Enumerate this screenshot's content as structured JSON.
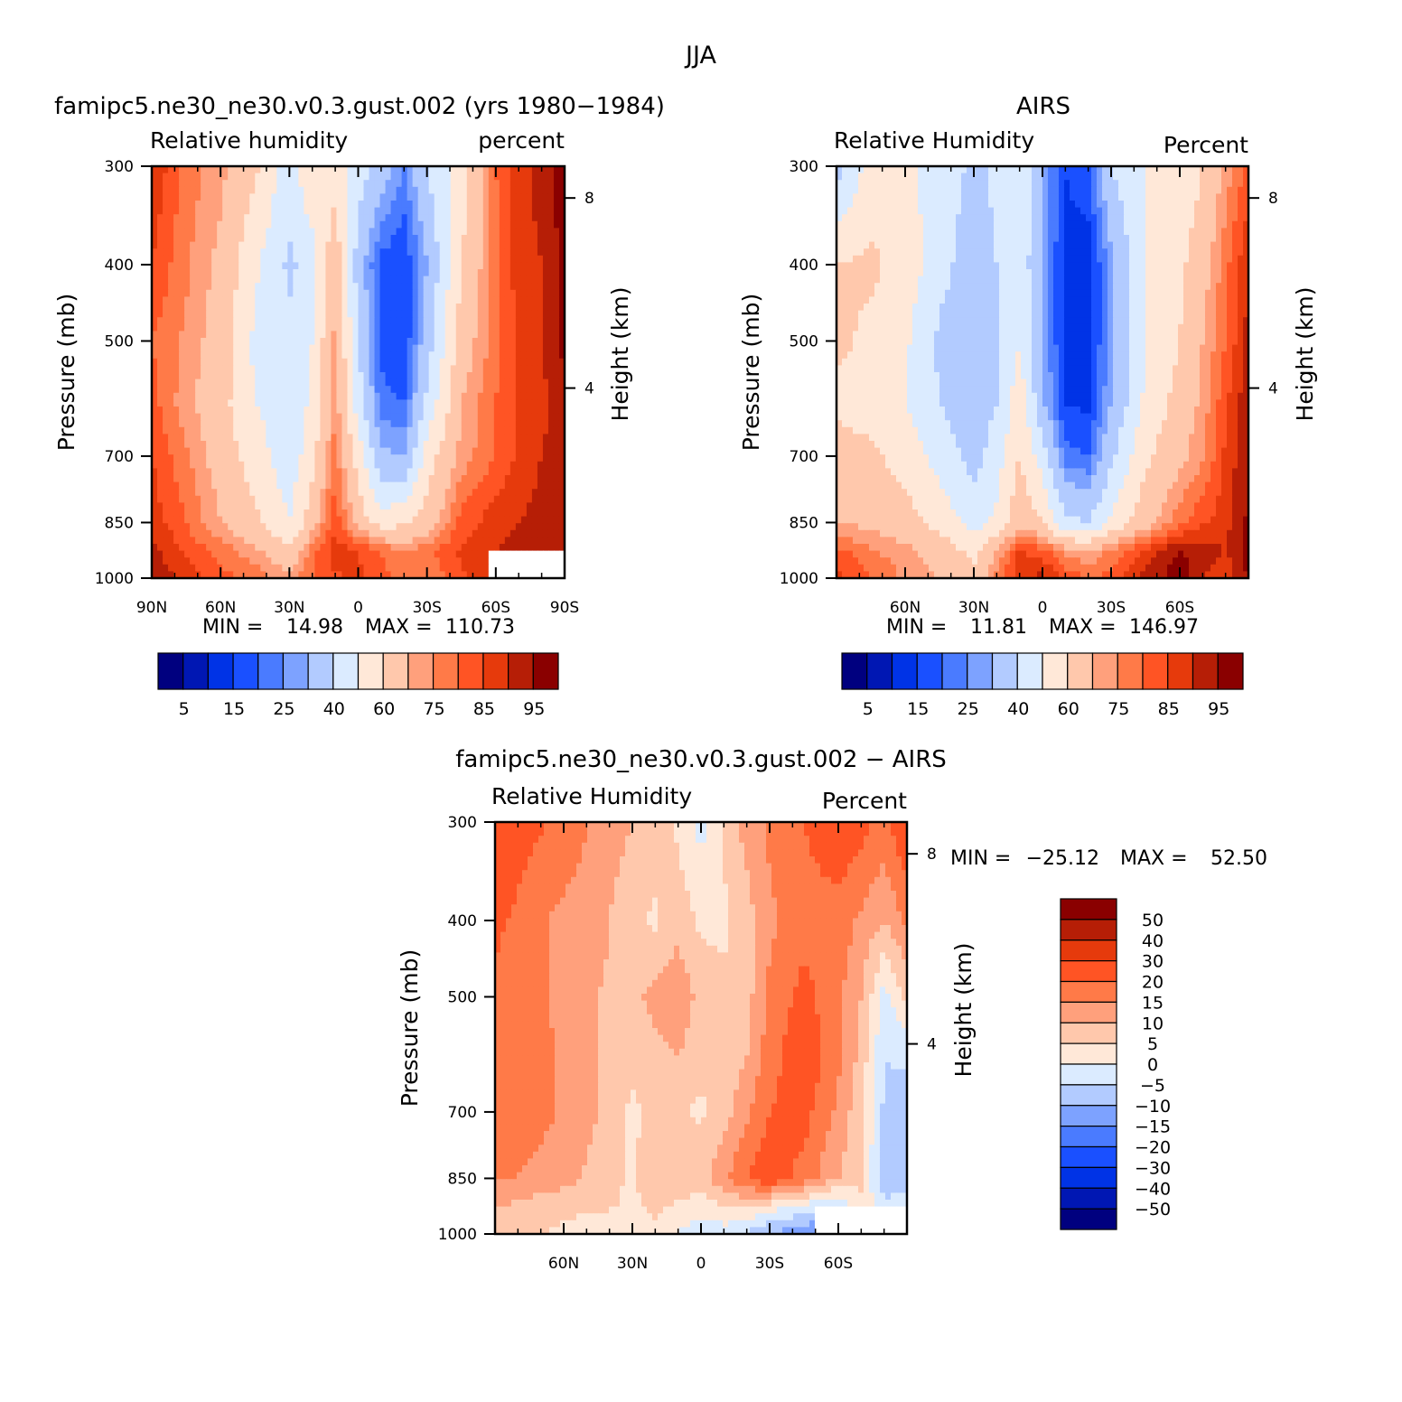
{
  "figure": {
    "title": "JJA"
  },
  "colors": {
    "abs_palette": [
      "#00007f",
      "#0017b3",
      "#0033e6",
      "#1a50ff",
      "#4a7bff",
      "#7da2ff",
      "#b2cbff",
      "#dbebff",
      "#ffe8d8",
      "#ffc8ac",
      "#ffa07c",
      "#ff7a48",
      "#ff5424",
      "#e63a0c",
      "#b61e06",
      "#8a0000"
    ],
    "diff_palette": [
      "#00007f",
      "#0017b3",
      "#0033e6",
      "#1a50ff",
      "#4a7bff",
      "#7da2ff",
      "#b2cbff",
      "#dbebff",
      "#ffe8d8",
      "#ffc8ac",
      "#ffa07c",
      "#ff7a48",
      "#ff5424",
      "#e63a0c",
      "#b61e06",
      "#8a0000"
    ]
  },
  "chart_data": [
    {
      "type": "heatmap",
      "title": "famipc5.ne30_ne30.v0.3.gust.002 (yrs 1980−1984)",
      "left_string": "Relative  humidity",
      "right_string": "percent",
      "xlabel": "",
      "ylabel": "Pressure  (mb)",
      "y2label": "Height  (km)",
      "x_range": [
        90,
        -90
      ],
      "x_ticks": [
        {
          "v": 90,
          "label": "90N"
        },
        {
          "v": 60,
          "label": "60N"
        },
        {
          "v": 30,
          "label": "30N"
        },
        {
          "v": 0,
          "label": "0"
        },
        {
          "v": -30,
          "label": "30S"
        },
        {
          "v": -60,
          "label": "60S"
        },
        {
          "v": -90,
          "label": "90S"
        }
      ],
      "y_range": [
        1000,
        300
      ],
      "y_scale": "log",
      "y_ticks": [
        300,
        400,
        500,
        700,
        850,
        1000
      ],
      "y2_ticks": [
        {
          "v": 8,
          "label": "8"
        },
        {
          "v": 4,
          "label": "4"
        }
      ],
      "min_label": "MIN  =",
      "min_value": "14.98",
      "max_label": "MAX  =",
      "max_value": "110.73",
      "levels": [
        5,
        10,
        15,
        20,
        25,
        30,
        40,
        50,
        60,
        70,
        75,
        80,
        85,
        90,
        95
      ],
      "colorbar_labels": [
        "5",
        "15",
        "25",
        "40",
        "60",
        "75",
        "85",
        "95"
      ],
      "lats": [
        90,
        75,
        60,
        45,
        30,
        20,
        10,
        0,
        -10,
        -20,
        -30,
        -45,
        -60,
        -70,
        -80,
        -90
      ],
      "lat_rows_pressure": [
        300,
        400,
        500,
        600,
        700,
        850,
        925,
        1000
      ],
      "values": [
        [
          90,
          78,
          72,
          62,
          45,
          60,
          55,
          45,
          35,
          25,
          40,
          55,
          80,
          88,
          92,
          98
        ],
        [
          85,
          76,
          68,
          52,
          38,
          45,
          68,
          35,
          18,
          15,
          30,
          60,
          78,
          88,
          90,
          97
        ],
        [
          80,
          74,
          66,
          48,
          42,
          50,
          72,
          40,
          18,
          15,
          35,
          65,
          78,
          86,
          90,
          96
        ],
        [
          82,
          72,
          64,
          50,
          44,
          52,
          74,
          45,
          22,
          20,
          42,
          70,
          80,
          86,
          88,
          95
        ],
        [
          85,
          76,
          66,
          55,
          44,
          56,
          78,
          55,
          32,
          30,
          55,
          72,
          80,
          86,
          90,
          94
        ],
        [
          88,
          80,
          70,
          62,
          50,
          66,
          84,
          66,
          55,
          58,
          64,
          82,
          88,
          90,
          92,
          94
        ],
        [
          92,
          84,
          78,
          72,
          62,
          78,
          88,
          85,
          80,
          75,
          78,
          86,
          90,
          92,
          94,
          95
        ],
        [
          94,
          88,
          82,
          78,
          72,
          80,
          84,
          86,
          82,
          78,
          76,
          84,
          88,
          90,
          92,
          95
        ]
      ],
      "missing_region": {
        "lat_from": -57,
        "lat_to": -90,
        "p_from": 925,
        "p_to": 1000
      }
    },
    {
      "type": "heatmap",
      "title": "AIRS",
      "left_string": "Relative  Humidity",
      "right_string": "Percent",
      "xlabel": "",
      "ylabel": "Pressure  (mb)",
      "y2label": "Height  (km)",
      "x_range": [
        90,
        -90
      ],
      "x_ticks": [
        {
          "v": 60,
          "label": "60N"
        },
        {
          "v": 30,
          "label": "30N"
        },
        {
          "v": 0,
          "label": "0"
        },
        {
          "v": -30,
          "label": "30S"
        },
        {
          "v": -60,
          "label": "60S"
        }
      ],
      "y_range": [
        1000,
        300
      ],
      "y_scale": "log",
      "y_ticks": [
        300,
        400,
        500,
        700,
        850,
        1000
      ],
      "y2_ticks": [
        {
          "v": 8,
          "label": "8"
        },
        {
          "v": 4,
          "label": "4"
        }
      ],
      "min_label": "MIN  =",
      "min_value": "11.81",
      "max_label": "MAX  =",
      "max_value": "146.97",
      "levels": [
        5,
        10,
        15,
        20,
        25,
        30,
        40,
        50,
        60,
        70,
        75,
        80,
        85,
        90,
        95
      ],
      "colorbar_labels": [
        "5",
        "15",
        "25",
        "40",
        "60",
        "75",
        "85",
        "95"
      ],
      "lats": [
        90,
        75,
        60,
        45,
        30,
        20,
        10,
        0,
        -10,
        -20,
        -30,
        -45,
        -60,
        -70,
        -80,
        -90
      ],
      "lat_rows_pressure": [
        300,
        400,
        500,
        600,
        700,
        850,
        925,
        1000
      ],
      "values": [
        [
          35,
          55,
          52,
          46,
          38,
          42,
          50,
          30,
          15,
          18,
          40,
          50,
          52,
          60,
          72,
          82
        ],
        [
          60,
          62,
          56,
          44,
          34,
          40,
          48,
          28,
          14,
          12,
          28,
          50,
          58,
          66,
          78,
          90
        ],
        [
          62,
          58,
          52,
          38,
          30,
          38,
          50,
          30,
          13,
          12,
          28,
          50,
          60,
          70,
          80,
          92
        ],
        [
          58,
          56,
          50,
          40,
          34,
          40,
          56,
          32,
          15,
          14,
          30,
          52,
          64,
          72,
          84,
          94
        ],
        [
          64,
          62,
          56,
          46,
          36,
          45,
          60,
          45,
          22,
          20,
          38,
          58,
          68,
          74,
          86,
          95
        ],
        [
          70,
          68,
          64,
          56,
          46,
          52,
          68,
          60,
          42,
          40,
          52,
          66,
          78,
          84,
          88,
          96
        ],
        [
          82,
          76,
          72,
          66,
          58,
          70,
          86,
          82,
          74,
          70,
          76,
          86,
          96,
          92,
          90,
          97
        ],
        [
          86,
          80,
          74,
          70,
          62,
          78,
          88,
          92,
          84,
          80,
          82,
          92,
          98,
          90,
          86,
          96
        ]
      ],
      "missing_region": null
    },
    {
      "type": "heatmap",
      "title": "famipc5.ne30_ne30.v0.3.gust.002  −  AIRS",
      "left_string": "Relative  Humidity",
      "right_string": "Percent",
      "xlabel": "",
      "ylabel": "Pressure  (mb)",
      "y2label": "Height  (km)",
      "x_range": [
        90,
        -90
      ],
      "x_ticks": [
        {
          "v": 60,
          "label": "60N"
        },
        {
          "v": 30,
          "label": "30N"
        },
        {
          "v": 0,
          "label": "0"
        },
        {
          "v": -30,
          "label": "30S"
        },
        {
          "v": -60,
          "label": "60S"
        }
      ],
      "y_range": [
        1000,
        300
      ],
      "y_scale": "log",
      "y_ticks": [
        300,
        400,
        500,
        700,
        850,
        1000
      ],
      "y2_ticks": [
        {
          "v": 8,
          "label": "8"
        },
        {
          "v": 4,
          "label": "4"
        }
      ],
      "min_label": "MIN  =",
      "min_value": "−25.12",
      "max_label": "MAX  =",
      "max_value": "52.50",
      "levels": [
        -50,
        -40,
        -30,
        -20,
        -15,
        -10,
        -5,
        0,
        5,
        10,
        15,
        20,
        30,
        40,
        50
      ],
      "colorbar_labels": [
        "50",
        "40",
        "30",
        "20",
        "15",
        "10",
        "5",
        "0",
        "−5",
        "−10",
        "−15",
        "−20",
        "−30",
        "−40",
        "−50"
      ],
      "lats": [
        90,
        75,
        60,
        45,
        30,
        20,
        10,
        0,
        -10,
        -20,
        -30,
        -45,
        -60,
        -70,
        -80,
        -90
      ],
      "lat_rows_pressure": [
        300,
        400,
        500,
        600,
        700,
        850,
        925,
        1000
      ],
      "values": [
        [
          30,
          22,
          18,
          14,
          10,
          8,
          4,
          -2,
          6,
          12,
          16,
          20,
          24,
          22,
          18,
          26
        ],
        [
          22,
          16,
          14,
          12,
          6,
          4,
          8,
          4,
          4,
          8,
          14,
          18,
          18,
          14,
          10,
          16
        ],
        [
          18,
          16,
          14,
          10,
          8,
          12,
          14,
          8,
          6,
          8,
          16,
          22,
          16,
          10,
          -2,
          6
        ],
        [
          20,
          18,
          14,
          10,
          6,
          8,
          10,
          6,
          6,
          10,
          18,
          24,
          16,
          8,
          -5,
          -4
        ],
        [
          20,
          18,
          14,
          10,
          4,
          6,
          6,
          4,
          8,
          14,
          20,
          22,
          14,
          6,
          -6,
          -8
        ],
        [
          16,
          14,
          12,
          8,
          4,
          10,
          8,
          8,
          14,
          20,
          24,
          18,
          10,
          6,
          -8,
          -10
        ],
        [
          10,
          8,
          6,
          6,
          4,
          6,
          4,
          2,
          4,
          6,
          2,
          -2,
          -6,
          4,
          -4,
          0
        ],
        [
          8,
          6,
          4,
          2,
          4,
          4,
          0,
          -4,
          -2,
          -6,
          -10,
          -14,
          -18,
          0,
          0,
          0
        ]
      ],
      "missing_region": {
        "lat_from": -49,
        "lat_to": -90,
        "p_from": 925,
        "p_to": 1000
      }
    }
  ]
}
